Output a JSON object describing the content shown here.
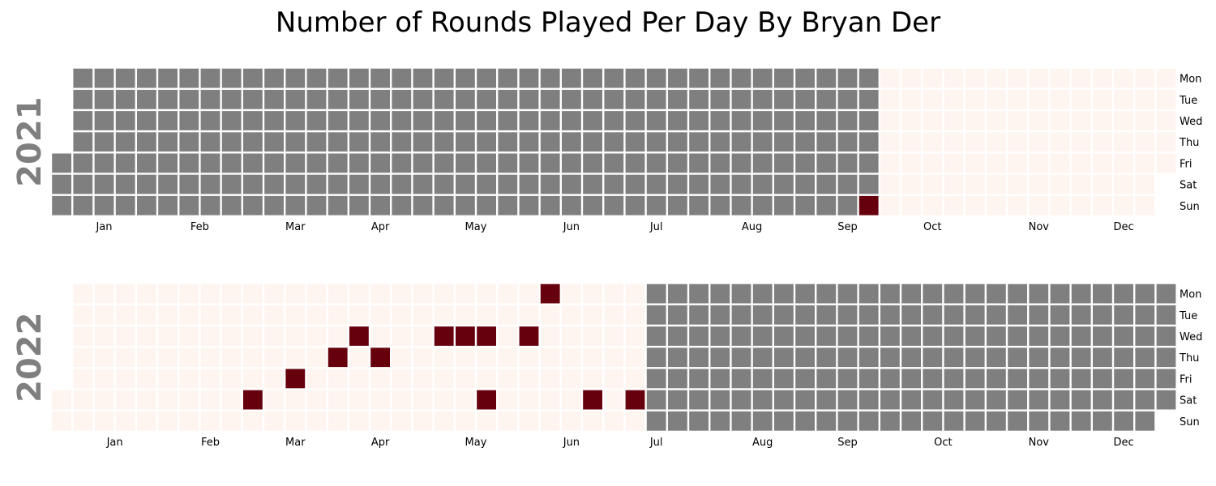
{
  "chart_data": {
    "type": "heatmap",
    "title": "Number of Rounds Played Per Day By Bryan Der",
    "day_labels": [
      "Mon",
      "Tue",
      "Wed",
      "Thu",
      "Fri",
      "Sat",
      "Sun"
    ],
    "month_labels": [
      "Jan",
      "Feb",
      "Mar",
      "Apr",
      "May",
      "Jun",
      "Jul",
      "Aug",
      "Sep",
      "Oct",
      "Nov",
      "Dec"
    ],
    "colors": {
      "no_data": "#7f7f7f",
      "zero": "#fff5f0",
      "played": "#67000d",
      "grid": "#ffffff"
    },
    "years": [
      {
        "year": "2021",
        "data_range": [
          "2021-09-26",
          "2021-12-31"
        ],
        "rounds_played": [
          {
            "date": "2021-09-26",
            "value": 1
          }
        ]
      },
      {
        "year": "2022",
        "data_range": [
          "2022-01-01",
          "2022-07-10"
        ],
        "rounds_played": [
          {
            "date": "2022-03-05",
            "value": 1
          },
          {
            "date": "2022-03-18",
            "value": 1
          },
          {
            "date": "2022-03-31",
            "value": 1
          },
          {
            "date": "2022-04-06",
            "value": 1
          },
          {
            "date": "2022-04-14",
            "value": 1
          },
          {
            "date": "2022-05-04",
            "value": 1
          },
          {
            "date": "2022-05-11",
            "value": 1
          },
          {
            "date": "2022-05-18",
            "value": 1
          },
          {
            "date": "2022-05-21",
            "value": 1
          },
          {
            "date": "2022-06-01",
            "value": 1
          },
          {
            "date": "2022-06-06",
            "value": 1
          },
          {
            "date": "2022-06-25",
            "value": 1
          },
          {
            "date": "2022-07-09",
            "value": 1
          }
        ]
      }
    ]
  }
}
